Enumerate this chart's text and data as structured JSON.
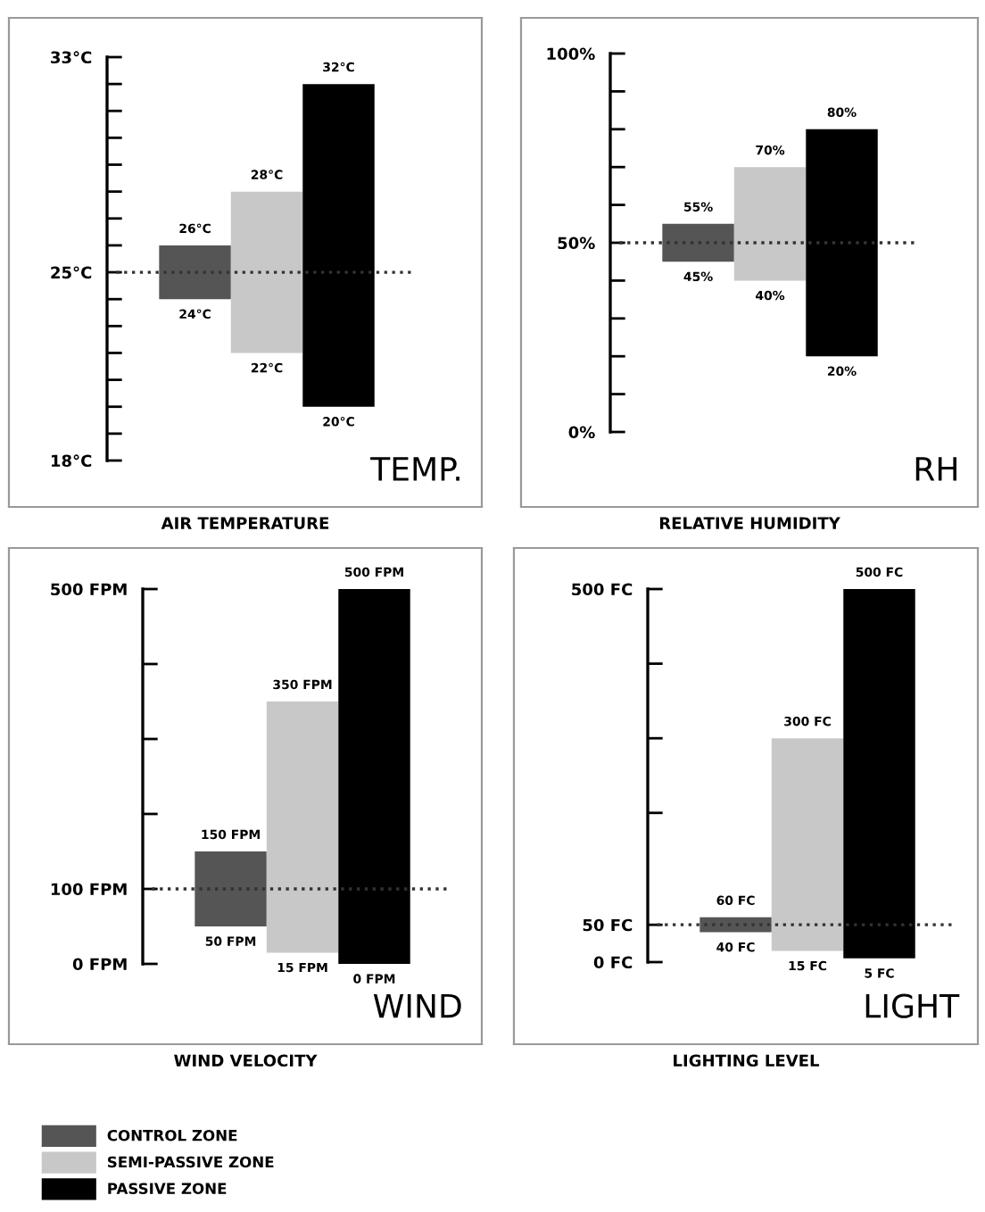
{
  "chart_data": [
    {
      "type": "bar",
      "title": "TEMP.",
      "xlabel": "AIR TEMPERATURE",
      "categories": [
        null,
        null,
        null
      ],
      "legend": "bottom left",
      "series": [
        {
          "name": "CONTROL ZONE",
          "color": "#555555",
          "values": [
            2,
            null,
            null
          ],
          "base": [
            24,
            null,
            null
          ]
        },
        {
          "name": "SEMI-PASSIVE ZONE",
          "color": "#c8c8c8",
          "values": [
            null,
            6,
            null
          ],
          "base": [
            null,
            22,
            null
          ]
        },
        {
          "name": "PASSIVE ZONE",
          "color": "#000000",
          "values": [
            null,
            null,
            12
          ],
          "base": [
            null,
            null,
            20
          ]
        }
      ],
      "ylim": [
        18,
        33
      ],
      "yticks": [
        {
          "value": 18,
          "label": "18°C"
        },
        {
          "value": 19,
          "label": null
        },
        {
          "value": 20,
          "label": null
        },
        {
          "value": 21,
          "label": null
        },
        {
          "value": 22,
          "label": null
        },
        {
          "value": 23,
          "label": null
        },
        {
          "value": 24,
          "label": null
        },
        {
          "value": 25,
          "label": "25°C"
        },
        {
          "value": 26,
          "label": null
        },
        {
          "value": 27,
          "label": null
        },
        {
          "value": 28,
          "label": null
        },
        {
          "value": 29,
          "label": null
        },
        {
          "value": 30,
          "label": null
        },
        {
          "value": 31,
          "label": null
        },
        {
          "value": 32,
          "label": null
        },
        {
          "value": 33,
          "label": "33°C"
        }
      ],
      "ref_lines": [
        {
          "axis": "y",
          "value": 25,
          "line_style": "dotted"
        }
      ],
      "annotations": [
        {
          "text": "26°C",
          "y": 26
        },
        {
          "text": "24°C",
          "y": 24
        },
        {
          "text": "28°C",
          "y": 28
        },
        {
          "text": "22°C",
          "y": 22
        },
        {
          "text": "32°C",
          "y": 32
        },
        {
          "text": "20°C",
          "y": 20
        }
      ]
    },
    {
      "type": "bar",
      "title": "RH",
      "xlabel": "RELATIVE HUMIDITY",
      "categories": [
        null,
        null,
        null
      ],
      "series": [
        {
          "color": "#555555",
          "values": [
            10,
            null,
            null
          ],
          "base": [
            45,
            null,
            null
          ]
        },
        {
          "color": "#c8c8c8",
          "values": [
            null,
            30,
            null
          ],
          "base": [
            null,
            40,
            null
          ]
        },
        {
          "color": "#000000",
          "values": [
            null,
            null,
            60
          ],
          "base": [
            null,
            null,
            20
          ]
        }
      ],
      "ylim": [
        0,
        100
      ],
      "yticks": [
        {
          "value": 0,
          "label": "0%"
        },
        {
          "value": 10,
          "label": null
        },
        {
          "value": 20,
          "label": null
        },
        {
          "value": 30,
          "label": null
        },
        {
          "value": 40,
          "label": null
        },
        {
          "value": 50,
          "label": "50%"
        },
        {
          "value": 60,
          "label": null
        },
        {
          "value": 70,
          "label": null
        },
        {
          "value": 80,
          "label": null
        },
        {
          "value": 90,
          "label": null
        },
        {
          "value": 100,
          "label": "100%"
        }
      ],
      "ref_lines": [
        {
          "axis": "y",
          "value": 50,
          "line_style": "dotted"
        }
      ],
      "annotations": [
        {
          "text": "55%",
          "y": 55
        },
        {
          "text": "45%",
          "y": 45
        },
        {
          "text": "70%",
          "y": 70
        },
        {
          "text": "40%",
          "y": 40
        },
        {
          "text": "80%",
          "y": 80
        },
        {
          "text": "20%",
          "y": 20
        }
      ]
    },
    {
      "type": "bar",
      "title": "WIND",
      "xlabel": "WIND VELOCITY",
      "categories": [
        null,
        null,
        null
      ],
      "series": [
        {
          "color": "#555555",
          "values": [
            100,
            null,
            null
          ],
          "base": [
            50,
            null,
            null
          ]
        },
        {
          "color": "#c8c8c8",
          "values": [
            null,
            335,
            null
          ],
          "base": [
            null,
            15,
            null
          ]
        },
        {
          "color": "#000000",
          "values": [
            null,
            null,
            500
          ],
          "base": [
            null,
            null,
            0
          ]
        }
      ],
      "ylim": [
        0,
        500
      ],
      "yticks": [
        {
          "value": 0,
          "label": "0 FPM"
        },
        {
          "value": 100,
          "label": "100 FPM"
        },
        {
          "value": 200,
          "label": null
        },
        {
          "value": 300,
          "label": null
        },
        {
          "value": 400,
          "label": null
        },
        {
          "value": 500,
          "label": "500 FPM"
        }
      ],
      "ref_lines": [
        {
          "axis": "y",
          "value": 100,
          "line_style": "dotted"
        }
      ],
      "annotations": [
        {
          "text": "150 FPM",
          "y": 150
        },
        {
          "text": "50 FPM",
          "y": 50
        },
        {
          "text": "350 FPM",
          "y": 350
        },
        {
          "text": "15 FPM",
          "y": 15
        },
        {
          "text": "500 FPM",
          "y": 500
        },
        {
          "text": "0 FPM",
          "y": 0
        }
      ]
    },
    {
      "type": "bar",
      "title": "LIGHT",
      "xlabel": "LIGHTING LEVEL",
      "categories": [
        null,
        null,
        null
      ],
      "series": [
        {
          "color": "#555555",
          "values": [
            20,
            null,
            null
          ],
          "base": [
            40,
            null,
            null
          ]
        },
        {
          "color": "#c8c8c8",
          "values": [
            null,
            285,
            null
          ],
          "base": [
            null,
            15,
            null
          ]
        },
        {
          "color": "#000000",
          "values": [
            null,
            null,
            495
          ],
          "base": [
            null,
            null,
            5
          ]
        }
      ],
      "ylim": [
        0,
        500
      ],
      "yticks": [
        {
          "value": 0,
          "label": "0 FC"
        },
        {
          "value": 50,
          "label": "50 FC"
        },
        {
          "value": 200,
          "label": null
        },
        {
          "value": 300,
          "label": null
        },
        {
          "value": 400,
          "label": null
        },
        {
          "value": 500,
          "label": "500 FC"
        }
      ],
      "ref_lines": [
        {
          "axis": "y",
          "value": 50,
          "line_style": "dotted"
        }
      ],
      "annotations": [
        {
          "text": "60 FC",
          "y": 60
        },
        {
          "text": "40 FC",
          "y": 40
        },
        {
          "text": "300 FC",
          "y": 300
        },
        {
          "text": "15 FC",
          "y": 15
        },
        {
          "text": "500 FC",
          "y": 500
        },
        {
          "text": "5 FC",
          "y": 5
        }
      ]
    }
  ]
}
